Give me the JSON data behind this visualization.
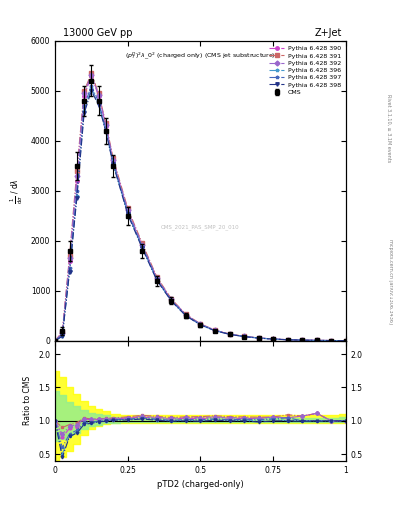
{
  "title_left": "13000 GeV pp",
  "title_right": "Z+Jet",
  "plot_title": "$(p_T^D)^2\\lambda\\_0^2$ (charged only) (CMS jet substructure)",
  "xlabel": "pTD2 (charged-only)",
  "ylabel": "1 / mathrm d$\\sigma$ / mathrm d$\\lambda$",
  "watermark": "CMS_2021_PAS_SMP_20_010",
  "right_label1": "Rivet 3.1.10, ≥ 3.1M events",
  "right_label2": "mcplots.cern.ch [arXiv:1306.3436]",
  "x_data": [
    0.0,
    0.025,
    0.05,
    0.075,
    0.1,
    0.125,
    0.15,
    0.175,
    0.2,
    0.25,
    0.3,
    0.35,
    0.4,
    0.45,
    0.5,
    0.55,
    0.6,
    0.65,
    0.7,
    0.75,
    0.8,
    0.85,
    0.9,
    0.95,
    1.0
  ],
  "cms_y": [
    0.0,
    200,
    1800,
    3500,
    4800,
    5200,
    4800,
    4200,
    3500,
    2500,
    1800,
    1200,
    800,
    500,
    320,
    200,
    130,
    85,
    55,
    35,
    22,
    14,
    9,
    6,
    2
  ],
  "cms_yerr": [
    0,
    80,
    200,
    280,
    300,
    310,
    290,
    260,
    220,
    180,
    140,
    100,
    70,
    50,
    35,
    25,
    18,
    14,
    10,
    8,
    6,
    4,
    3,
    2,
    1
  ],
  "pythia_390_y": [
    0.0,
    150,
    1600,
    3200,
    4900,
    5300,
    4900,
    4300,
    3600,
    2600,
    1900,
    1250,
    820,
    520,
    330,
    210,
    135,
    88,
    57,
    37,
    23,
    15,
    10,
    6,
    2
  ],
  "pythia_391_y": [
    0.0,
    180,
    1700,
    3400,
    5000,
    5350,
    4950,
    4350,
    3650,
    2650,
    1950,
    1280,
    840,
    530,
    340,
    215,
    138,
    90,
    58,
    37,
    24,
    15,
    10,
    6,
    2
  ],
  "pythia_392_y": [
    0.0,
    160,
    1650,
    3300,
    4950,
    5320,
    4920,
    4320,
    3620,
    2620,
    1920,
    1260,
    830,
    525,
    335,
    212,
    136,
    89,
    57,
    37,
    23,
    15,
    10,
    6,
    2
  ],
  "pythia_396_y": [
    0.0,
    100,
    1400,
    2900,
    4600,
    5050,
    4750,
    4200,
    3550,
    2550,
    1870,
    1220,
    800,
    505,
    322,
    204,
    131,
    86,
    55,
    36,
    22,
    14,
    9,
    6,
    2
  ],
  "pythia_397_y": [
    0.0,
    120,
    1450,
    3000,
    4700,
    5100,
    4780,
    4220,
    3560,
    2560,
    1880,
    1230,
    805,
    510,
    325,
    206,
    132,
    87,
    56,
    36,
    23,
    14,
    9,
    6,
    2
  ],
  "pythia_398_y": [
    0.0,
    90,
    1380,
    2850,
    4550,
    5000,
    4720,
    4180,
    3530,
    2530,
    1850,
    1210,
    795,
    500,
    318,
    202,
    130,
    85,
    54,
    35,
    22,
    14,
    9,
    6,
    2
  ],
  "ratio_x": [
    0.0,
    0.025,
    0.05,
    0.075,
    0.1,
    0.125,
    0.15,
    0.175,
    0.2,
    0.25,
    0.3,
    0.35,
    0.4,
    0.45,
    0.5,
    0.55,
    0.6,
    0.65,
    0.7,
    0.75,
    0.8,
    0.85,
    0.9,
    0.95,
    1.0
  ],
  "ylim_main": [
    0,
    6000
  ],
  "ylim_ratio": [
    0.4,
    2.2
  ],
  "ratio_yticks": [
    0.5,
    1.0,
    1.5,
    2.0
  ],
  "colors": {
    "cms": "#000000",
    "p390": "#cc44cc",
    "p391": "#cc6666",
    "p392": "#9966cc",
    "p396": "#4499cc",
    "p397": "#4466bb",
    "p398": "#223388"
  },
  "markers": {
    "cms": "s",
    "p390": "o",
    "p391": "s",
    "p392": "D",
    "p396": "*",
    "p397": "*",
    "p398": "v"
  },
  "band_yellow_lower": [
    0.4,
    0.45,
    0.55,
    0.65,
    0.78,
    0.88,
    0.92,
    0.95,
    0.97,
    0.97,
    0.97,
    0.97,
    0.97,
    0.97,
    0.97,
    0.97,
    0.97,
    0.97,
    0.97,
    0.97,
    0.97,
    0.97,
    0.97,
    0.97,
    0.97
  ],
  "band_yellow_upper": [
    1.75,
    1.65,
    1.5,
    1.4,
    1.3,
    1.22,
    1.18,
    1.15,
    1.1,
    1.08,
    1.08,
    1.08,
    1.08,
    1.08,
    1.08,
    1.08,
    1.08,
    1.08,
    1.08,
    1.08,
    1.08,
    1.08,
    1.08,
    1.08,
    1.1
  ],
  "band_green_lower": [
    0.7,
    0.72,
    0.78,
    0.82,
    0.88,
    0.92,
    0.94,
    0.96,
    0.97,
    0.98,
    0.98,
    0.98,
    0.98,
    0.98,
    0.98,
    0.98,
    0.98,
    0.98,
    0.98,
    0.98,
    0.98,
    0.98,
    0.98,
    0.98,
    0.98
  ],
  "band_green_upper": [
    1.45,
    1.38,
    1.28,
    1.22,
    1.16,
    1.12,
    1.1,
    1.08,
    1.06,
    1.04,
    1.04,
    1.04,
    1.04,
    1.04,
    1.04,
    1.04,
    1.04,
    1.04,
    1.04,
    1.04,
    1.04,
    1.04,
    1.04,
    1.04,
    1.06
  ]
}
